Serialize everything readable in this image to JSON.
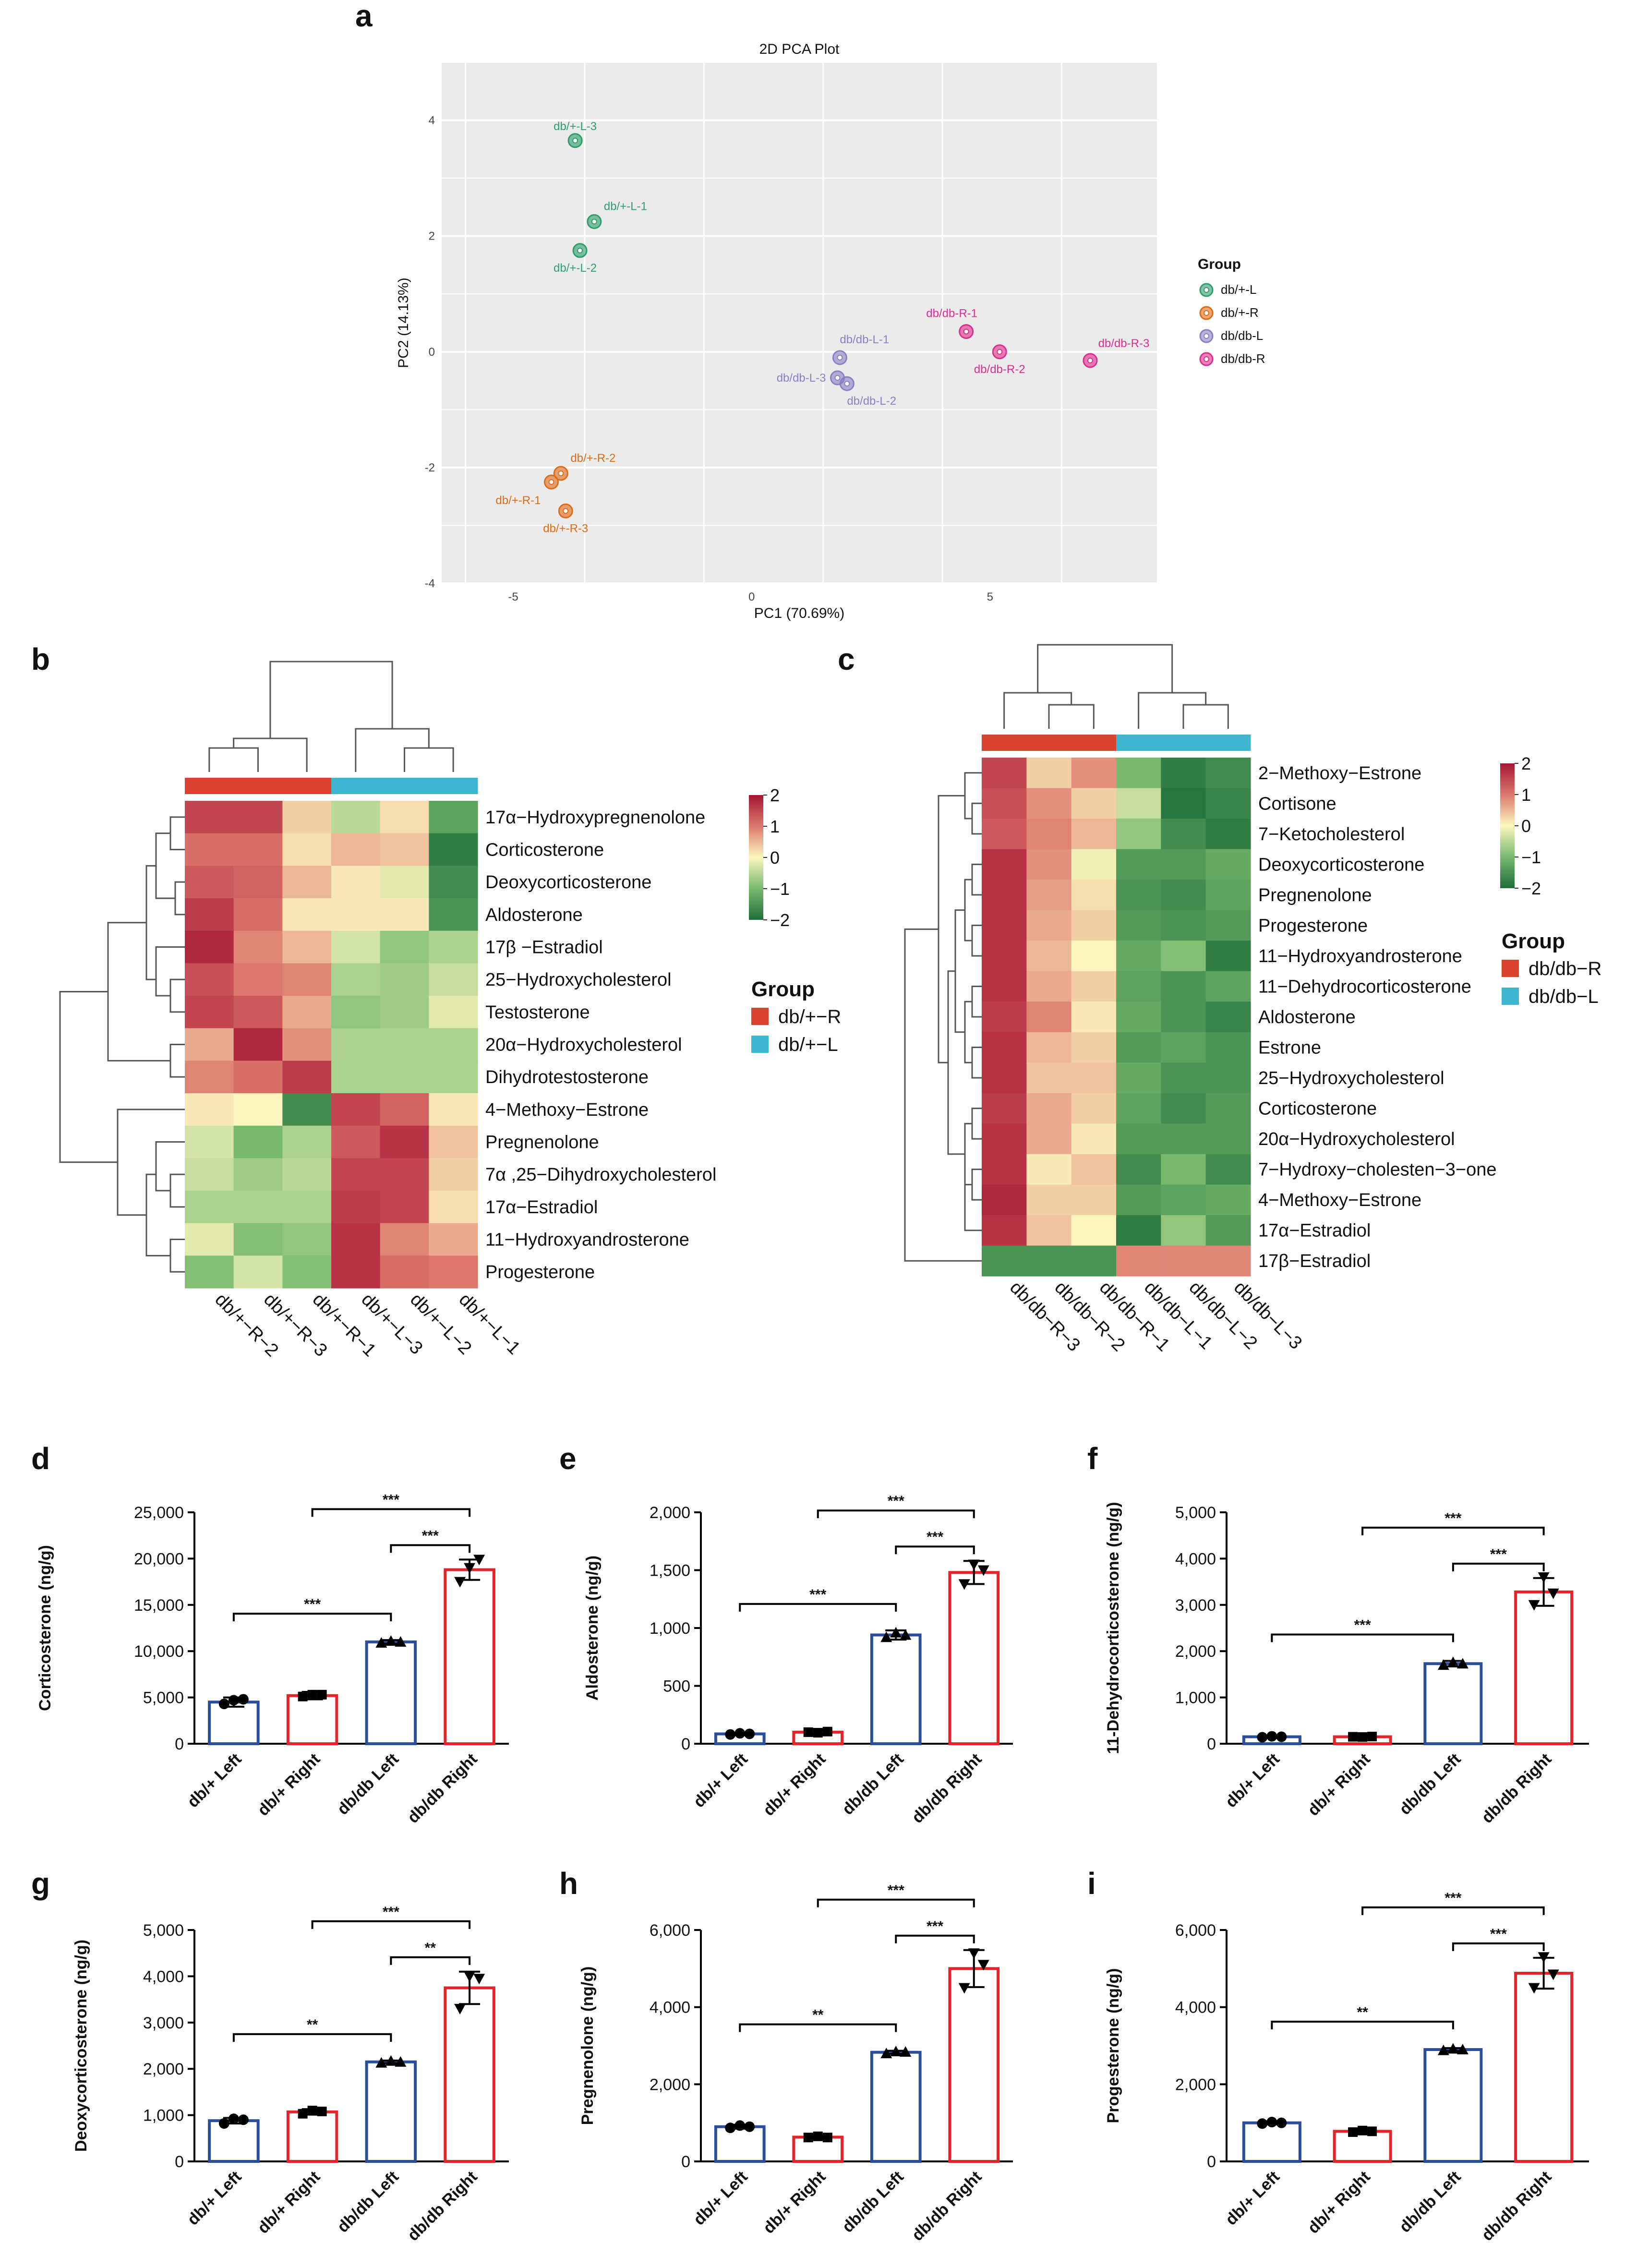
{
  "panel_letters": [
    "a",
    "b",
    "c",
    "d",
    "e",
    "f",
    "g",
    "h",
    "i"
  ],
  "chart_data": [
    {
      "panel": "a",
      "type": "scatter",
      "title": "2D PCA Plot",
      "xlabel": "PC1 (70.69%)",
      "ylabel": "PC2 (14.13%)",
      "xlim": [
        -6.5,
        8.5
      ],
      "ylim": [
        -4,
        5
      ],
      "xticks": [
        "-5",
        "0",
        "5"
      ],
      "yticks": [
        "-4",
        "-2",
        "0",
        "2",
        "4"
      ],
      "grid": true,
      "legend_title": "Group",
      "legend_position": "right",
      "groups": [
        {
          "name": "db/+-L",
          "color": "#2e9e6b"
        },
        {
          "name": "db/+-R",
          "color": "#e06b17"
        },
        {
          "name": "db/db-L",
          "color": "#8a80c4"
        },
        {
          "name": "db/db-R",
          "color": "#de2d8e"
        }
      ],
      "points": [
        {
          "label": "db/+-L-3",
          "group": 0,
          "x": -3.7,
          "y": 3.65
        },
        {
          "label": "db/+-L-1",
          "group": 0,
          "x": -3.3,
          "y": 2.25
        },
        {
          "label": "db/+-L-2",
          "group": 0,
          "x": -3.6,
          "y": 1.75
        },
        {
          "label": "db/+-R-2",
          "group": 1,
          "x": -4.0,
          "y": -2.1
        },
        {
          "label": "db/+-R-1",
          "group": 1,
          "x": -4.2,
          "y": -2.25
        },
        {
          "label": "db/+-R-3",
          "group": 1,
          "x": -3.9,
          "y": -2.75
        },
        {
          "label": "db/db-L-1",
          "group": 2,
          "x": 1.85,
          "y": -0.1
        },
        {
          "label": "db/db-L-3",
          "group": 2,
          "x": 1.8,
          "y": -0.45
        },
        {
          "label": "db/db-L-2",
          "group": 2,
          "x": 2.0,
          "y": -0.55
        },
        {
          "label": "db/db-R-1",
          "group": 3,
          "x": 4.5,
          "y": 0.35
        },
        {
          "label": "db/db-R-2",
          "group": 3,
          "x": 5.2,
          "y": 0.0
        },
        {
          "label": "db/db-R-3",
          "group": 3,
          "x": 7.1,
          "y": -0.15
        }
      ]
    },
    {
      "panel": "b",
      "type": "heatmap",
      "color_scale": {
        "min": -2,
        "max": 2,
        "ticks": [
          "2",
          "1",
          "0",
          "−1",
          "−2"
        ]
      },
      "columns": [
        "db/+−R−2",
        "db/+−R−3",
        "db/+−R−1",
        "db/+−L−3",
        "db/+−L−2",
        "db/+−L−1"
      ],
      "column_groups": [
        0,
        0,
        0,
        1,
        1,
        1
      ],
      "legend_title": "Group",
      "groups": [
        {
          "name": "db/+−R",
          "color": "#d9432f"
        },
        {
          "name": "db/+−L",
          "color": "#3fb6d0"
        }
      ],
      "rows": [
        "17α−Hydroxypregnenolone",
        "Corticosterone",
        "Deoxycorticosterone",
        "Aldosterone",
        "17β −Estradiol",
        "25−Hydroxycholesterol",
        "Testosterone",
        "20α−Hydroxycholesterol",
        "Dihydrotestosterone",
        "4−Methoxy−Estrone",
        "Pregnenolone",
        "7α ,25−Dihydroxycholesterol",
        "17α−Estradiol",
        "11−Hydroxyandrosterone",
        "Progesterone"
      ],
      "values": [
        [
          1.5,
          1.5,
          0.3,
          -0.5,
          0.2,
          -1.3
        ],
        [
          1.1,
          1.1,
          0.2,
          0.5,
          0.4,
          -1.8
        ],
        [
          1.3,
          1.2,
          0.5,
          0.1,
          -0.2,
          -1.6
        ],
        [
          1.6,
          1.1,
          0.1,
          0.1,
          0.1,
          -1.5
        ],
        [
          1.8,
          0.9,
          0.5,
          -0.3,
          -0.8,
          -0.6
        ],
        [
          1.4,
          1.0,
          0.9,
          -0.6,
          -0.7,
          -0.4
        ],
        [
          1.5,
          1.3,
          0.6,
          -0.8,
          -0.7,
          -0.2
        ],
        [
          0.6,
          1.8,
          0.8,
          -0.6,
          -0.6,
          -0.6
        ],
        [
          0.9,
          1.1,
          1.6,
          -0.6,
          -0.6,
          -0.6
        ],
        [
          0.1,
          0.0,
          -1.6,
          1.5,
          1.2,
          0.1
        ],
        [
          -0.3,
          -1.0,
          -0.6,
          1.3,
          1.7,
          0.4
        ],
        [
          -0.4,
          -0.7,
          -0.5,
          1.5,
          1.5,
          0.3
        ],
        [
          -0.6,
          -0.6,
          -0.6,
          1.6,
          1.5,
          0.2
        ],
        [
          -0.2,
          -0.9,
          -0.8,
          1.7,
          0.9,
          0.6
        ],
        [
          -0.9,
          -0.3,
          -0.9,
          1.7,
          1.1,
          1.0
        ]
      ]
    },
    {
      "panel": "c",
      "type": "heatmap",
      "color_scale": {
        "min": -2,
        "max": 2,
        "ticks": [
          "2",
          "1",
          "0",
          "−1",
          "−2"
        ]
      },
      "columns": [
        "db/db−R−3",
        "db/db−R−2",
        "db/db−R−1",
        "db/db−L−1",
        "db/db−L−2",
        "db/db−L−3"
      ],
      "column_groups": [
        0,
        0,
        0,
        1,
        1,
        1
      ],
      "legend_title": "Group",
      "groups": [
        {
          "name": "db/db−R",
          "color": "#d9432f"
        },
        {
          "name": "db/db−L",
          "color": "#3fb6d0"
        }
      ],
      "rows": [
        "2−Methoxy−Estrone",
        "Cortisone",
        "7−Ketocholesterol",
        "Deoxycorticosterone",
        "Pregnenolone",
        "Progesterone",
        "11−Hydroxyandrosterone",
        "11−Dehydrocorticosterone",
        "Aldosterone",
        "Estrone",
        "25−Hydroxycholesterol",
        "Corticosterone",
        "20α−Hydroxycholesterol",
        "7−Hydroxy−cholesten−3−one",
        "4−Methoxy−Estrone",
        "17α−Estradiol",
        "17β−Estradiol"
      ],
      "values": [
        [
          1.5,
          0.3,
          0.8,
          -1.0,
          -1.8,
          -1.6
        ],
        [
          1.4,
          0.8,
          0.3,
          -0.4,
          -1.9,
          -1.7
        ],
        [
          1.3,
          0.9,
          0.5,
          -0.8,
          -1.6,
          -1.8
        ],
        [
          1.7,
          0.8,
          -0.1,
          -1.4,
          -1.4,
          -1.2
        ],
        [
          1.7,
          0.7,
          0.2,
          -1.5,
          -1.6,
          -1.3
        ],
        [
          1.7,
          0.6,
          0.3,
          -1.4,
          -1.5,
          -1.4
        ],
        [
          1.7,
          0.5,
          0.0,
          -1.2,
          -0.9,
          -1.8
        ],
        [
          1.7,
          0.6,
          0.3,
          -1.3,
          -1.5,
          -1.3
        ],
        [
          1.6,
          0.9,
          0.1,
          -1.2,
          -1.5,
          -1.7
        ],
        [
          1.7,
          0.5,
          0.3,
          -1.4,
          -1.3,
          -1.5
        ],
        [
          1.7,
          0.4,
          0.4,
          -1.2,
          -1.5,
          -1.5
        ],
        [
          1.6,
          0.6,
          0.3,
          -1.3,
          -1.6,
          -1.4
        ],
        [
          1.7,
          0.6,
          0.1,
          -1.4,
          -1.4,
          -1.4
        ],
        [
          1.7,
          0.1,
          0.4,
          -1.6,
          -1.0,
          -1.6
        ],
        [
          1.8,
          0.3,
          0.3,
          -1.4,
          -1.3,
          -1.2
        ],
        [
          1.7,
          0.4,
          0.0,
          -1.8,
          -0.8,
          -1.4
        ],
        [
          -1.5,
          -1.5,
          -1.5,
          0.9,
          0.9,
          0.9
        ]
      ]
    },
    {
      "panel": "d",
      "type": "bar",
      "ylabel": "Corticosterone (ng/g)",
      "categories": [
        "db/+ Left",
        "db/+ Right",
        "db/db Left",
        "db/db Right"
      ],
      "ylim": [
        0,
        25000
      ],
      "yticks": [
        "0",
        "5,000",
        "10,000",
        "15,000",
        "20,000",
        "25,000"
      ],
      "values": [
        4500,
        5200,
        11000,
        18800
      ],
      "errors": [
        500,
        400,
        200,
        1100
      ],
      "points": [
        [
          4300,
          4700,
          4800
        ],
        [
          5100,
          5300,
          5300
        ],
        [
          10900,
          11100,
          11000
        ],
        [
          17500,
          19000,
          19900
        ]
      ],
      "comparisons": [
        {
          "from": 0,
          "to": 2,
          "label": "***"
        },
        {
          "from": 2,
          "to": 3,
          "label": "***"
        },
        {
          "from": 1,
          "to": 3,
          "label": "***"
        }
      ]
    },
    {
      "panel": "e",
      "type": "bar",
      "ylabel": "Aldosterone (ng/g)",
      "categories": [
        "db/+ Left",
        "db/+ Right",
        "db/db Left",
        "db/db Right"
      ],
      "ylim": [
        0,
        2000
      ],
      "yticks": [
        "0",
        "500",
        "1,000",
        "1,500",
        "2,000"
      ],
      "values": [
        85,
        100,
        940,
        1480
      ],
      "errors": [
        10,
        20,
        40,
        100
      ],
      "points": [
        [
          80,
          90,
          85
        ],
        [
          100,
          95,
          105
        ],
        [
          920,
          960,
          940
        ],
        [
          1380,
          1550,
          1500
        ]
      ],
      "comparisons": [
        {
          "from": 0,
          "to": 2,
          "label": "***"
        },
        {
          "from": 2,
          "to": 3,
          "label": "***"
        },
        {
          "from": 1,
          "to": 3,
          "label": "***"
        }
      ]
    },
    {
      "panel": "f",
      "type": "bar",
      "ylabel": "11-Dehydrocorticosterone (ng/g)",
      "categories": [
        "db/+ Left",
        "db/+ Right",
        "db/db Left",
        "db/db Right"
      ],
      "ylim": [
        0,
        5000
      ],
      "yticks": [
        "0",
        "1,000",
        "2,000",
        "3,000",
        "4,000",
        "5,000"
      ],
      "values": [
        150,
        150,
        1730,
        3280
      ],
      "errors": [
        20,
        20,
        60,
        300
      ],
      "points": [
        [
          140,
          160,
          150
        ],
        [
          150,
          145,
          155
        ],
        [
          1700,
          1760,
          1730
        ],
        [
          3000,
          3600,
          3250
        ]
      ],
      "comparisons": [
        {
          "from": 0,
          "to": 2,
          "label": "***"
        },
        {
          "from": 2,
          "to": 3,
          "label": "***"
        },
        {
          "from": 1,
          "to": 3,
          "label": "***"
        }
      ]
    },
    {
      "panel": "g",
      "type": "bar",
      "ylabel": "Deoxycorticosterone (ng/g)",
      "categories": [
        "db/+ Left",
        "db/+ Right",
        "db/db Left",
        "db/db Right"
      ],
      "ylim": [
        0,
        5000
      ],
      "yticks": [
        "0",
        "1,000",
        "2,000",
        "3,000",
        "4,000",
        "5,000"
      ],
      "values": [
        880,
        1070,
        2150,
        3750
      ],
      "errors": [
        60,
        60,
        30,
        350
      ],
      "points": [
        [
          820,
          920,
          900
        ],
        [
          1030,
          1100,
          1080
        ],
        [
          2130,
          2170,
          2150
        ],
        [
          3300,
          4000,
          3950
        ]
      ],
      "comparisons": [
        {
          "from": 0,
          "to": 2,
          "label": "**"
        },
        {
          "from": 2,
          "to": 3,
          "label": "**"
        },
        {
          "from": 1,
          "to": 3,
          "label": "***"
        }
      ]
    },
    {
      "panel": "h",
      "type": "bar",
      "ylabel": "Pregnenolone (ng/g)",
      "categories": [
        "db/+ Left",
        "db/+ Right",
        "db/db Left",
        "db/db Right"
      ],
      "ylim": [
        0,
        6000
      ],
      "yticks": [
        "0",
        "2,000",
        "4,000",
        "6,000"
      ],
      "values": [
        900,
        630,
        2830,
        5000
      ],
      "errors": [
        50,
        60,
        40,
        480
      ],
      "points": [
        [
          870,
          930,
          900
        ],
        [
          620,
          650,
          620
        ],
        [
          2800,
          2850,
          2840
        ],
        [
          4500,
          5400,
          5100
        ]
      ],
      "comparisons": [
        {
          "from": 0,
          "to": 2,
          "label": "**"
        },
        {
          "from": 2,
          "to": 3,
          "label": "***"
        },
        {
          "from": 1,
          "to": 3,
          "label": "***"
        }
      ]
    },
    {
      "panel": "i",
      "type": "bar",
      "ylabel": "Progesterone (ng/g)",
      "categories": [
        "db/+ Left",
        "db/+ Right",
        "db/db Left",
        "db/db Right"
      ],
      "ylim": [
        0,
        6000
      ],
      "yticks": [
        "0",
        "2,000",
        "4,000",
        "6,000"
      ],
      "values": [
        1000,
        780,
        2900,
        4880
      ],
      "errors": [
        40,
        50,
        40,
        400
      ],
      "points": [
        [
          980,
          1020,
          1000
        ],
        [
          760,
          800,
          780
        ],
        [
          2880,
          2920,
          2900
        ],
        [
          4500,
          5300,
          4850
        ]
      ],
      "comparisons": [
        {
          "from": 0,
          "to": 2,
          "label": "**"
        },
        {
          "from": 2,
          "to": 3,
          "label": "***"
        },
        {
          "from": 1,
          "to": 3,
          "label": "***"
        }
      ]
    }
  ]
}
